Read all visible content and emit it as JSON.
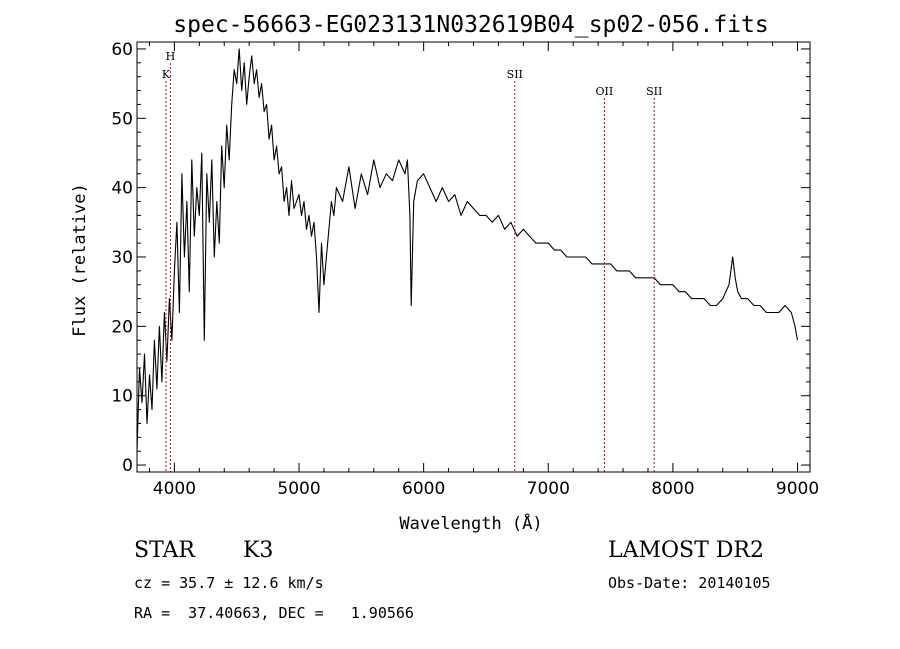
{
  "chart_data": {
    "type": "line",
    "title": "spec-56663-EG023131N032619B04_sp02-056.fits",
    "xlabel": "Wavelength (Å)",
    "ylabel": "Flux (relative)",
    "xlim": [
      3700,
      9100
    ],
    "ylim": [
      -1,
      61
    ],
    "xticks": [
      4000,
      5000,
      6000,
      7000,
      8000,
      9000
    ],
    "yticks": [
      0,
      10,
      20,
      30,
      40,
      50,
      60
    ],
    "grid": false,
    "line_color": "#000000",
    "marker_color": "#8b1a1a",
    "series": [
      {
        "x": [
          3700,
          3720,
          3740,
          3760,
          3780,
          3800,
          3820,
          3840,
          3860,
          3880,
          3900,
          3920,
          3940,
          3960,
          3980,
          4000,
          4020,
          4040,
          4060,
          4080,
          4100,
          4120,
          4140,
          4160,
          4180,
          4200,
          4220,
          4240,
          4260,
          4280,
          4300,
          4320,
          4340,
          4360,
          4380,
          4400,
          4420,
          4440,
          4460,
          4480,
          4500,
          4520,
          4540,
          4560,
          4580,
          4600,
          4620,
          4640,
          4660,
          4680,
          4700,
          4720,
          4740,
          4760,
          4780,
          4800,
          4820,
          4840,
          4860,
          4880,
          4900,
          4920,
          4940,
          4960,
          4980,
          5000,
          5020,
          5040,
          5060,
          5080,
          5100,
          5120,
          5140,
          5160,
          5180,
          5200,
          5220,
          5240,
          5260,
          5280,
          5300,
          5350,
          5400,
          5450,
          5500,
          5550,
          5600,
          5650,
          5700,
          5750,
          5800,
          5850,
          5870,
          5890,
          5900,
          5920,
          5950,
          6000,
          6050,
          6100,
          6150,
          6200,
          6250,
          6300,
          6350,
          6400,
          6450,
          6500,
          6550,
          6600,
          6650,
          6700,
          6750,
          6800,
          6850,
          6900,
          6950,
          7000,
          7050,
          7100,
          7150,
          7200,
          7250,
          7300,
          7350,
          7400,
          7450,
          7500,
          7550,
          7600,
          7650,
          7700,
          7750,
          7800,
          7850,
          7900,
          7950,
          8000,
          8050,
          8100,
          8150,
          8200,
          8250,
          8300,
          8350,
          8400,
          8450,
          8480,
          8500,
          8520,
          8550,
          8600,
          8650,
          8700,
          8750,
          8800,
          8850,
          8900,
          8950,
          8980,
          9000
        ],
        "y": [
          2,
          14,
          9,
          16,
          6,
          13,
          8,
          18,
          11,
          20,
          12,
          22,
          15,
          24,
          18,
          28,
          35,
          22,
          42,
          30,
          38,
          25,
          44,
          33,
          40,
          36,
          45,
          18,
          42,
          35,
          44,
          30,
          38,
          32,
          46,
          40,
          49,
          44,
          52,
          57,
          55,
          60,
          54,
          58,
          52,
          56,
          59,
          55,
          57,
          53,
          55,
          51,
          52,
          47,
          49,
          44,
          46,
          42,
          43,
          38,
          40,
          36,
          41,
          37,
          38,
          39,
          36,
          38,
          34,
          36,
          33,
          35,
          30,
          22,
          32,
          26,
          30,
          34,
          38,
          36,
          40,
          38,
          43,
          37,
          42,
          39,
          44,
          40,
          42,
          41,
          44,
          42,
          44,
          36,
          23,
          38,
          41,
          42,
          40,
          38,
          40,
          38,
          39,
          36,
          38,
          37,
          36,
          36,
          35,
          36,
          34,
          35,
          33,
          34,
          33,
          32,
          32,
          32,
          31,
          31,
          30,
          30,
          30,
          30,
          29,
          29,
          29,
          29,
          28,
          28,
          28,
          27,
          27,
          27,
          27,
          26,
          26,
          26,
          25,
          25,
          24,
          24,
          24,
          23,
          23,
          24,
          26,
          30,
          27,
          25,
          24,
          24,
          23,
          23,
          22,
          22,
          22,
          23,
          22,
          20,
          18
        ]
      }
    ],
    "annotations": [
      {
        "label": "H",
        "x": 3968
      },
      {
        "label": "K",
        "x": 3933
      },
      {
        "label": "SII",
        "x": 6731
      },
      {
        "label": "OII",
        "x": 7450
      },
      {
        "label": "SII",
        "x": 7850
      }
    ]
  },
  "info": {
    "class": "STAR",
    "subclass": "K3",
    "survey": "LAMOST DR2",
    "cz": "cz = 35.7 ± 12.6 km/s",
    "obsdate": "Obs-Date: 20140105",
    "radec": "RA =  37.40663, DEC =   1.90566"
  }
}
